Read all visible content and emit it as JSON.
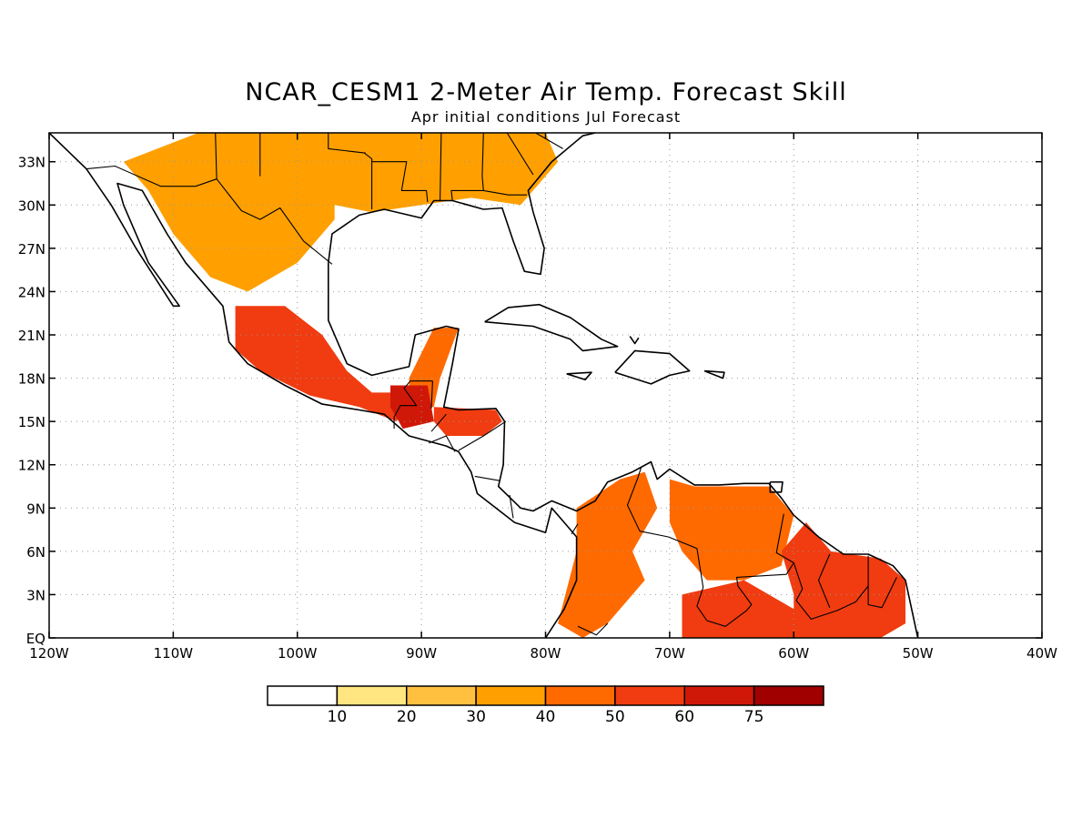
{
  "title": "NCAR_CESM1 2-Meter Air Temp. Forecast Skill",
  "subtitle": "Apr initial conditions  Jul Forecast",
  "map": {
    "lon_range": [
      -120,
      -40
    ],
    "lat_range": [
      0,
      35
    ],
    "x_ticks": [
      {
        "lon": -120,
        "label": "120W"
      },
      {
        "lon": -110,
        "label": "110W"
      },
      {
        "lon": -100,
        "label": "100W"
      },
      {
        "lon": -90,
        "label": "90W"
      },
      {
        "lon": -80,
        "label": "80W"
      },
      {
        "lon": -70,
        "label": "70W"
      },
      {
        "lon": -60,
        "label": "60W"
      },
      {
        "lon": -50,
        "label": "50W"
      },
      {
        "lon": -40,
        "label": "40W"
      }
    ],
    "y_ticks": [
      {
        "lat": 0,
        "label": "EQ"
      },
      {
        "lat": 3,
        "label": "3N"
      },
      {
        "lat": 6,
        "label": "6N"
      },
      {
        "lat": 9,
        "label": "9N"
      },
      {
        "lat": 12,
        "label": "12N"
      },
      {
        "lat": 15,
        "label": "15N"
      },
      {
        "lat": 18,
        "label": "18N"
      },
      {
        "lat": 21,
        "label": "21N"
      },
      {
        "lat": 24,
        "label": "24N"
      },
      {
        "lat": 27,
        "label": "27N"
      },
      {
        "lat": 30,
        "label": "30N"
      },
      {
        "lat": 33,
        "label": "33N"
      }
    ],
    "grid": true
  },
  "colorbar": {
    "colors": [
      "#ffffff",
      "#ffe680",
      "#ffc040",
      "#ffa000",
      "#ff6a00",
      "#f03c10",
      "#d01808",
      "#a00000"
    ],
    "labels": [
      "10",
      "20",
      "30",
      "40",
      "50",
      "60",
      "75"
    ]
  },
  "skill_regions": [
    {
      "name": "mexico-north",
      "level": 3,
      "points": [
        [
          -114,
          33
        ],
        [
          -108,
          35
        ],
        [
          -100,
          35
        ],
        [
          -97,
          33
        ],
        [
          -97,
          29
        ],
        [
          -100,
          26
        ],
        [
          -104,
          24
        ],
        [
          -107,
          25
        ],
        [
          -110,
          28
        ],
        [
          -112,
          31
        ]
      ]
    },
    {
      "name": "us-south",
      "level": 3,
      "points": [
        [
          -100,
          35
        ],
        [
          -90,
          35
        ],
        [
          -80,
          35
        ],
        [
          -79,
          33
        ],
        [
          -82,
          30
        ],
        [
          -86,
          30.5
        ],
        [
          -90,
          30
        ],
        [
          -94,
          29.5
        ],
        [
          -97,
          30
        ],
        [
          -100,
          33
        ]
      ]
    },
    {
      "name": "mexico-south",
      "level": 5,
      "points": [
        [
          -105,
          23
        ],
        [
          -101,
          23
        ],
        [
          -98,
          21
        ],
        [
          -96,
          18.5
        ],
        [
          -94,
          17
        ],
        [
          -91,
          17
        ],
        [
          -92,
          15
        ],
        [
          -95,
          16
        ],
        [
          -99,
          16.8
        ],
        [
          -103,
          18.5
        ],
        [
          -105,
          20
        ]
      ]
    },
    {
      "name": "yucatan",
      "level": 4,
      "points": [
        [
          -91,
          18
        ],
        [
          -89,
          21.5
        ],
        [
          -87,
          21.5
        ],
        [
          -88.5,
          18
        ],
        [
          -89,
          16
        ],
        [
          -91,
          16
        ]
      ]
    },
    {
      "name": "guatemala",
      "level": 6,
      "points": [
        [
          -92.5,
          17.5
        ],
        [
          -89.5,
          17.5
        ],
        [
          -89,
          15
        ],
        [
          -91.5,
          14.5
        ],
        [
          -92.5,
          16
        ]
      ]
    },
    {
      "name": "honduras",
      "level": 5,
      "points": [
        [
          -89,
          16
        ],
        [
          -84,
          15.8
        ],
        [
          -83.5,
          15
        ],
        [
          -85,
          14
        ],
        [
          -88,
          14
        ],
        [
          -89,
          15
        ]
      ]
    },
    {
      "name": "colombia",
      "level": 4,
      "points": [
        [
          -77.5,
          9
        ],
        [
          -74,
          11
        ],
        [
          -72,
          11.5
        ],
        [
          -71,
          9
        ],
        [
          -73,
          6
        ],
        [
          -72,
          4
        ],
        [
          -75,
          1
        ],
        [
          -77,
          0
        ],
        [
          -79,
          1
        ],
        [
          -77.5,
          6
        ]
      ]
    },
    {
      "name": "venezuela",
      "level": 4,
      "points": [
        [
          -70,
          11
        ],
        [
          -68,
          10.5
        ],
        [
          -62,
          10.5
        ],
        [
          -60,
          8.5
        ],
        [
          -61,
          5
        ],
        [
          -64,
          4
        ],
        [
          -67,
          4
        ],
        [
          -69,
          6
        ],
        [
          -70,
          8
        ]
      ]
    },
    {
      "name": "guiana",
      "level": 5,
      "points": [
        [
          -59,
          8
        ],
        [
          -57,
          6
        ],
        [
          -53,
          5.5
        ],
        [
          -51,
          4
        ],
        [
          -51,
          1
        ],
        [
          -53,
          0
        ],
        [
          -60,
          0
        ],
        [
          -60,
          3
        ],
        [
          -61,
          6
        ]
      ]
    },
    {
      "name": "brazil-north",
      "level": 5,
      "points": [
        [
          -69,
          3
        ],
        [
          -64,
          4
        ],
        [
          -60,
          2
        ],
        [
          -55,
          0
        ],
        [
          -69,
          0
        ]
      ]
    }
  ],
  "coastline": [
    [
      [
        -120,
        35
      ],
      [
        -117,
        32.5
      ],
      [
        -115,
        30
      ],
      [
        -113,
        27
      ],
      [
        -110,
        23
      ],
      [
        -109.5,
        23
      ],
      [
        -112,
        26
      ],
      [
        -114,
        30
      ],
      [
        -114.5,
        31.5
      ],
      [
        -112.5,
        31
      ],
      [
        -110.5,
        28
      ],
      [
        -109,
        26
      ],
      [
        -106,
        23
      ],
      [
        -105.5,
        20.5
      ],
      [
        -104,
        19
      ],
      [
        -101,
        17.5
      ],
      [
        -98,
        16.2
      ],
      [
        -95,
        15.8
      ],
      [
        -93,
        15.5
      ],
      [
        -91,
        14
      ],
      [
        -88,
        13.3
      ],
      [
        -87,
        12.9
      ],
      [
        -86,
        11.5
      ],
      [
        -85.5,
        10
      ],
      [
        -84,
        9
      ],
      [
        -82.5,
        8
      ],
      [
        -80,
        7.3
      ],
      [
        -79.5,
        9
      ],
      [
        -78.5,
        8
      ],
      [
        -77.5,
        7
      ],
      [
        -77.5,
        4
      ],
      [
        -78.5,
        2
      ],
      [
        -80,
        0
      ]
    ],
    [
      [
        -97.5,
        26
      ],
      [
        -97.5,
        22
      ],
      [
        -96,
        19
      ],
      [
        -94,
        18.2
      ],
      [
        -91,
        18.8
      ],
      [
        -90.5,
        21
      ],
      [
        -88,
        21.6
      ],
      [
        -87,
        21.4
      ],
      [
        -87.5,
        19
      ],
      [
        -88.2,
        16
      ],
      [
        -87,
        15.8
      ],
      [
        -84,
        15.9
      ],
      [
        -83.3,
        15
      ],
      [
        -83.4,
        12
      ],
      [
        -83.8,
        10.5
      ],
      [
        -82,
        9
      ],
      [
        -81,
        8.8
      ],
      [
        -79.5,
        9.5
      ],
      [
        -77.5,
        8.8
      ],
      [
        -76,
        9.5
      ],
      [
        -75,
        10.8
      ],
      [
        -73,
        11.5
      ],
      [
        -71.5,
        12.2
      ],
      [
        -71,
        11
      ],
      [
        -70,
        11.7
      ],
      [
        -68,
        10.6
      ],
      [
        -66,
        10.6
      ],
      [
        -64,
        10.7
      ],
      [
        -62,
        10.7
      ],
      [
        -61,
        9.7
      ],
      [
        -60,
        8.5
      ],
      [
        -58,
        7
      ],
      [
        -56,
        5.8
      ],
      [
        -54,
        5.8
      ],
      [
        -52,
        5
      ],
      [
        -51,
        4
      ],
      [
        -50.5,
        2
      ],
      [
        -50,
        0
      ]
    ],
    [
      [
        -97.5,
        26
      ],
      [
        -97.2,
        28
      ],
      [
        -95,
        29.3
      ],
      [
        -93,
        29.7
      ],
      [
        -90,
        29.1
      ],
      [
        -89,
        30.3
      ],
      [
        -87.5,
        30.3
      ],
      [
        -85,
        29.7
      ],
      [
        -83.5,
        29.8
      ],
      [
        -82.6,
        27.5
      ],
      [
        -81.7,
        25.4
      ],
      [
        -80.4,
        25.2
      ],
      [
        -80.1,
        27
      ],
      [
        -81,
        29.5
      ],
      [
        -81.4,
        31
      ],
      [
        -79.5,
        33
      ],
      [
        -77,
        34.8
      ],
      [
        -76,
        35
      ]
    ],
    [
      [
        -84.9,
        21.9
      ],
      [
        -83,
        22.9
      ],
      [
        -80.5,
        23.1
      ],
      [
        -78,
        22.2
      ],
      [
        -75.5,
        20.7
      ],
      [
        -74.2,
        20.2
      ],
      [
        -77,
        19.9
      ],
      [
        -78,
        20.7
      ],
      [
        -81,
        21.6
      ],
      [
        -84.9,
        21.9
      ]
    ],
    [
      [
        -74.4,
        18.4
      ],
      [
        -72.8,
        19.9
      ],
      [
        -70,
        19.7
      ],
      [
        -68.4,
        18.5
      ],
      [
        -70,
        18.2
      ],
      [
        -71.5,
        17.6
      ],
      [
        -74.4,
        18.4
      ]
    ],
    [
      [
        -78.3,
        18.3
      ],
      [
        -76.3,
        18.4
      ],
      [
        -76.8,
        17.9
      ],
      [
        -78.3,
        18.3
      ]
    ],
    [
      [
        -67.2,
        18.5
      ],
      [
        -65.6,
        18.4
      ],
      [
        -65.7,
        18
      ],
      [
        -67.2,
        18.5
      ]
    ],
    [
      [
        -61.9,
        10.8
      ],
      [
        -60.9,
        10.8
      ],
      [
        -61,
        10.1
      ],
      [
        -61.9,
        10.1
      ],
      [
        -61.9,
        10.8
      ]
    ],
    [
      [
        -72.5,
        20.8
      ],
      [
        -72.8,
        20.4
      ],
      [
        -73.2,
        20.9
      ]
    ]
  ],
  "borders": [
    [
      [
        -117,
        32.5
      ],
      [
        -114.7,
        32.7
      ],
      [
        -111,
        31.3
      ],
      [
        -108.2,
        31.3
      ],
      [
        -106.5,
        31.8
      ],
      [
        -104.5,
        29.6
      ],
      [
        -103,
        29
      ],
      [
        -101.4,
        29.8
      ],
      [
        -99.5,
        27.5
      ],
      [
        -97.2,
        25.9
      ]
    ],
    [
      [
        -92.2,
        14.5
      ],
      [
        -92.2,
        15.3
      ],
      [
        -91.7,
        16.1
      ],
      [
        -90.4,
        16.1
      ],
      [
        -91.4,
        17.3
      ],
      [
        -90.9,
        17.8
      ],
      [
        -89.1,
        17.8
      ]
    ],
    [
      [
        -89.1,
        17.8
      ],
      [
        -89.2,
        15.9
      ]
    ],
    [
      [
        -89.2,
        14.3
      ],
      [
        -88,
        15.5
      ]
    ],
    [
      [
        -89.4,
        13.5
      ],
      [
        -88,
        14
      ],
      [
        -87.3,
        12.9
      ]
    ],
    [
      [
        -87,
        13
      ],
      [
        -85,
        14
      ],
      [
        -83.2,
        15
      ]
    ],
    [
      [
        -85.7,
        11.2
      ],
      [
        -83.7,
        10.9
      ]
    ],
    [
      [
        -82.9,
        9.9
      ],
      [
        -82.6,
        8.3
      ]
    ],
    [
      [
        -77.4,
        7.9
      ],
      [
        -77.9,
        7.2
      ]
    ],
    [
      [
        -72.3,
        11.8
      ],
      [
        -72.6,
        11
      ],
      [
        -73.4,
        9.2
      ],
      [
        -72.4,
        7.4
      ],
      [
        -70.1,
        7
      ],
      [
        -67.8,
        6.2
      ],
      [
        -67.3,
        3.5
      ],
      [
        -67.8,
        2.2
      ],
      [
        -67,
        1.2
      ]
    ],
    [
      [
        -60.8,
        8.6
      ],
      [
        -61.4,
        5.9
      ],
      [
        -60,
        5.2
      ],
      [
        -60.6,
        4.4
      ],
      [
        -64.6,
        4.2
      ],
      [
        -64.5,
        3.6
      ],
      [
        -63.4,
        2.3
      ],
      [
        -63.8,
        1.9
      ],
      [
        -65.5,
        0.8
      ],
      [
        -67,
        1.2
      ]
    ],
    [
      [
        -60,
        5.2
      ],
      [
        -59.3,
        3.4
      ],
      [
        -59.8,
        2.6
      ],
      [
        -58.6,
        1.3
      ],
      [
        -56.5,
        1.9
      ],
      [
        -55,
        2.5
      ],
      [
        -54,
        3.6
      ]
    ],
    [
      [
        -57.1,
        5.8
      ],
      [
        -58,
        4
      ],
      [
        -57.1,
        2.1
      ]
    ],
    [
      [
        -54,
        5.7
      ],
      [
        -54,
        2.3
      ],
      [
        -52.9,
        2.1
      ],
      [
        -51.7,
        4.2
      ]
    ],
    [
      [
        -75,
        1
      ],
      [
        -75.9,
        0.2
      ],
      [
        -77.4,
        0.8
      ]
    ],
    [
      [
        -106.5,
        31.8
      ],
      [
        -106.6,
        35
      ]
    ],
    [
      [
        -103,
        32
      ],
      [
        -103,
        35
      ]
    ],
    [
      [
        -100,
        34.5
      ],
      [
        -100,
        35
      ]
    ],
    [
      [
        -94.6,
        33.6
      ],
      [
        -94,
        33.2
      ],
      [
        -94,
        29.7
      ]
    ],
    [
      [
        -94,
        33
      ],
      [
        -91.2,
        33
      ],
      [
        -91.6,
        31
      ],
      [
        -89.6,
        31
      ],
      [
        -89.5,
        30.2
      ]
    ],
    [
      [
        -88.4,
        35
      ],
      [
        -88.5,
        30.3
      ]
    ],
    [
      [
        -85,
        35
      ],
      [
        -85.1,
        32
      ],
      [
        -85,
        31
      ],
      [
        -87.6,
        31
      ],
      [
        -87.5,
        30.3
      ]
    ],
    [
      [
        -85,
        31
      ],
      [
        -83,
        30.7
      ],
      [
        -81.5,
        30.7
      ]
    ],
    [
      [
        -83.1,
        35
      ],
      [
        -81,
        32.1
      ]
    ],
    [
      [
        -80.8,
        35
      ],
      [
        -78.6,
        33.9
      ]
    ],
    [
      [
        -97.5,
        35
      ],
      [
        -97.5,
        33.9
      ],
      [
        -94.5,
        33.6
      ]
    ]
  ]
}
